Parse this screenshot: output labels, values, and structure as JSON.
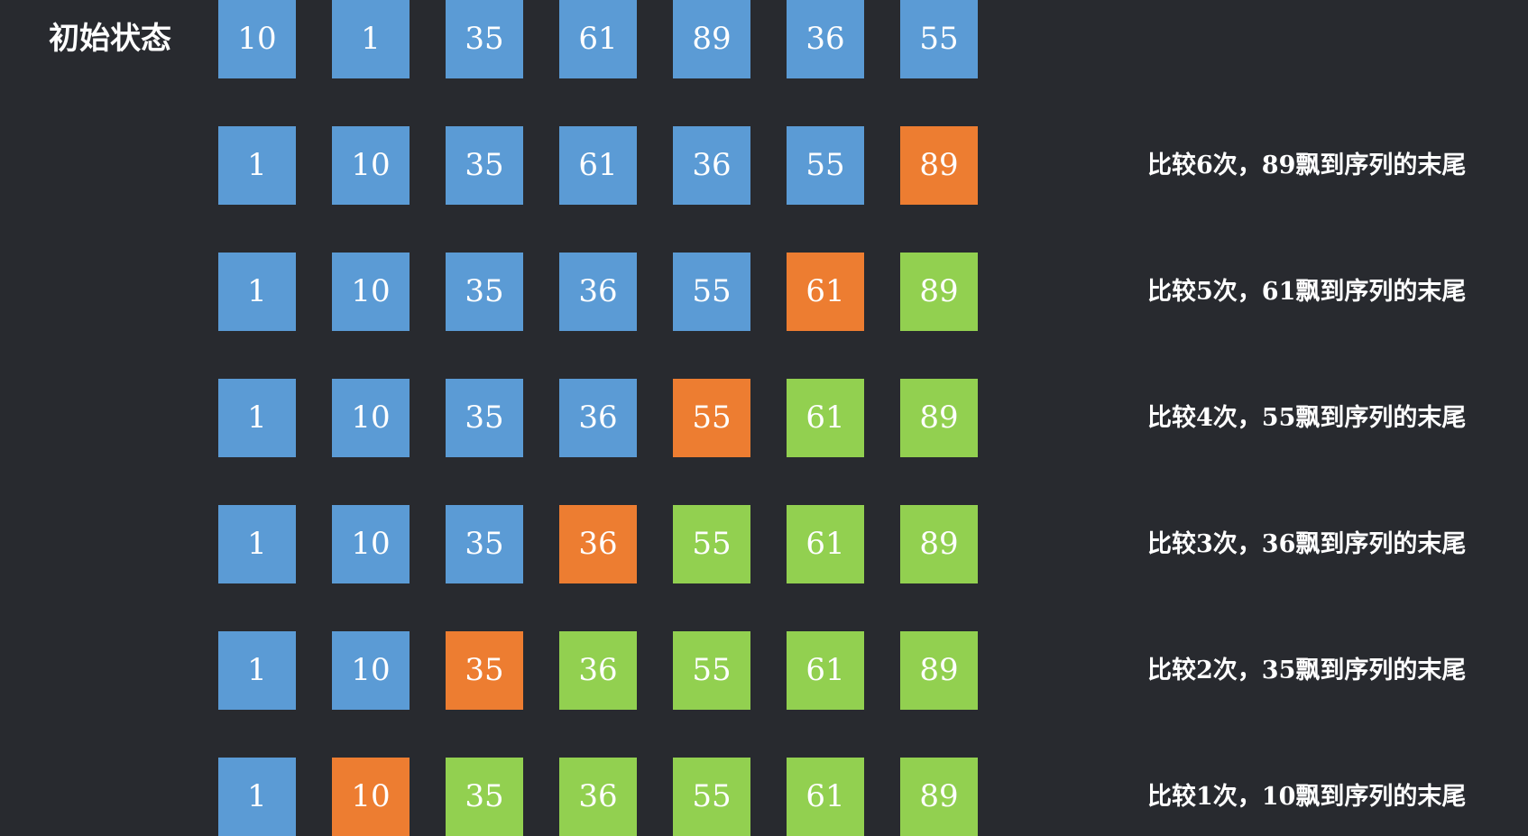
{
  "colors": {
    "background": "#282a2f",
    "default": "#5b9bd5",
    "moving": "#ed7d31",
    "sorted": "#92d050"
  },
  "rows": [
    {
      "label": "初始状态",
      "caption": "",
      "cells": [
        {
          "value": "10",
          "state": "default"
        },
        {
          "value": "1",
          "state": "default"
        },
        {
          "value": "35",
          "state": "default"
        },
        {
          "value": "61",
          "state": "default"
        },
        {
          "value": "89",
          "state": "default"
        },
        {
          "value": "36",
          "state": "default"
        },
        {
          "value": "55",
          "state": "default"
        }
      ]
    },
    {
      "label": "",
      "caption": "比较6次，89飘到序列的末尾",
      "cells": [
        {
          "value": "1",
          "state": "default"
        },
        {
          "value": "10",
          "state": "default"
        },
        {
          "value": "35",
          "state": "default"
        },
        {
          "value": "61",
          "state": "default"
        },
        {
          "value": "36",
          "state": "default"
        },
        {
          "value": "55",
          "state": "default"
        },
        {
          "value": "89",
          "state": "moving"
        }
      ]
    },
    {
      "label": "",
      "caption": "比较5次，61飘到序列的末尾",
      "cells": [
        {
          "value": "1",
          "state": "default"
        },
        {
          "value": "10",
          "state": "default"
        },
        {
          "value": "35",
          "state": "default"
        },
        {
          "value": "36",
          "state": "default"
        },
        {
          "value": "55",
          "state": "default"
        },
        {
          "value": "61",
          "state": "moving"
        },
        {
          "value": "89",
          "state": "sorted"
        }
      ]
    },
    {
      "label": "",
      "caption": "比较4次，55飘到序列的末尾",
      "cells": [
        {
          "value": "1",
          "state": "default"
        },
        {
          "value": "10",
          "state": "default"
        },
        {
          "value": "35",
          "state": "default"
        },
        {
          "value": "36",
          "state": "default"
        },
        {
          "value": "55",
          "state": "moving"
        },
        {
          "value": "61",
          "state": "sorted"
        },
        {
          "value": "89",
          "state": "sorted"
        }
      ]
    },
    {
      "label": "",
      "caption": "比较3次，36飘到序列的末尾",
      "cells": [
        {
          "value": "1",
          "state": "default"
        },
        {
          "value": "10",
          "state": "default"
        },
        {
          "value": "35",
          "state": "default"
        },
        {
          "value": "36",
          "state": "moving"
        },
        {
          "value": "55",
          "state": "sorted"
        },
        {
          "value": "61",
          "state": "sorted"
        },
        {
          "value": "89",
          "state": "sorted"
        }
      ]
    },
    {
      "label": "",
      "caption": "比较2次，35飘到序列的末尾",
      "cells": [
        {
          "value": "1",
          "state": "default"
        },
        {
          "value": "10",
          "state": "default"
        },
        {
          "value": "35",
          "state": "moving"
        },
        {
          "value": "36",
          "state": "sorted"
        },
        {
          "value": "55",
          "state": "sorted"
        },
        {
          "value": "61",
          "state": "sorted"
        },
        {
          "value": "89",
          "state": "sorted"
        }
      ]
    },
    {
      "label": "",
      "caption": "比较1次，10飘到序列的末尾",
      "cells": [
        {
          "value": "1",
          "state": "default"
        },
        {
          "value": "10",
          "state": "moving"
        },
        {
          "value": "35",
          "state": "sorted"
        },
        {
          "value": "36",
          "state": "sorted"
        },
        {
          "value": "55",
          "state": "sorted"
        },
        {
          "value": "61",
          "state": "sorted"
        },
        {
          "value": "89",
          "state": "sorted"
        }
      ]
    }
  ]
}
